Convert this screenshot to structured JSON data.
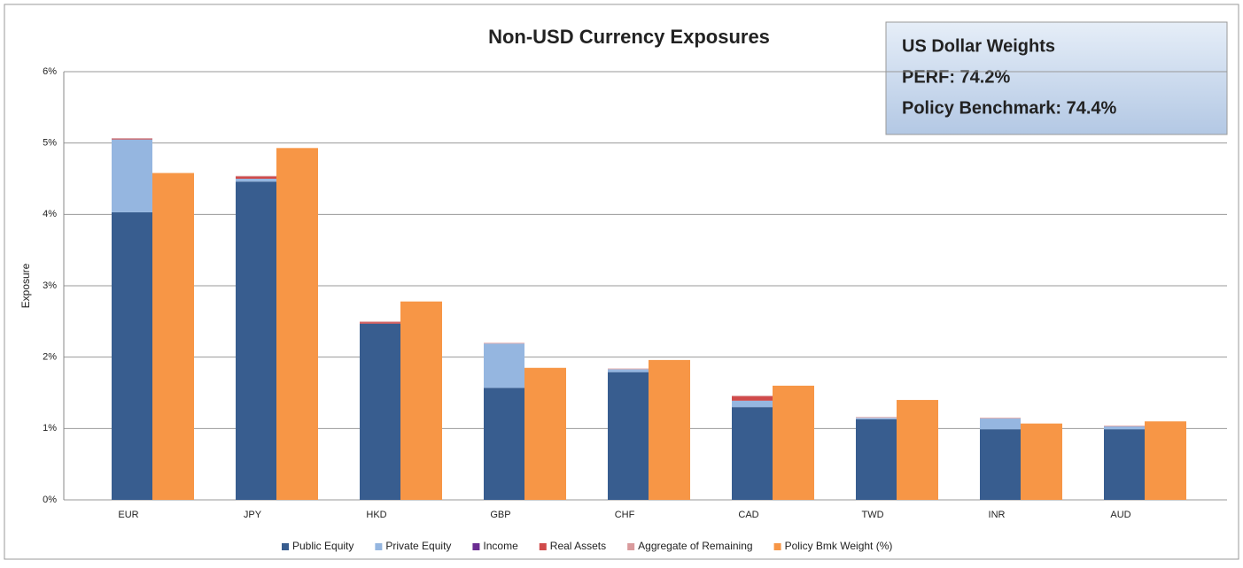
{
  "chart_data": {
    "type": "bar",
    "title": "Non-USD Currency Exposures",
    "y_label": "Exposure",
    "annotation": {
      "title": "US Dollar Weights",
      "lines": [
        "PERF: 74.2%",
        "Policy Benchmark: 74.4%"
      ]
    },
    "categories": [
      "EUR",
      "JPY",
      "HKD",
      "GBP",
      "CHF",
      "CAD",
      "TWD",
      "INR",
      "AUD"
    ],
    "series": [
      {
        "name": "Public Equity",
        "color": "#385d8f",
        "values": [
          4.03,
          4.46,
          2.47,
          1.57,
          1.79,
          1.3,
          1.13,
          0.99,
          0.99
        ]
      },
      {
        "name": "Private Equity",
        "color": "#95b6e0",
        "values": [
          1.02,
          0.04,
          0,
          0.62,
          0.04,
          0.09,
          0.02,
          0.15,
          0.04
        ]
      },
      {
        "name": "Income",
        "color": "#6a2c91",
        "values": [
          0,
          0,
          0,
          0,
          0,
          0,
          0,
          0,
          0
        ]
      },
      {
        "name": "Real Assets",
        "color": "#d04a4a",
        "values": [
          0.01,
          0.03,
          0.02,
          0,
          0,
          0.06,
          0,
          0,
          0
        ]
      },
      {
        "name": "Aggregate of Remaining",
        "color": "#d99a9c",
        "values": [
          0.01,
          0.01,
          0.01,
          0.01,
          0.01,
          0.01,
          0.01,
          0.01,
          0.01
        ]
      },
      {
        "name": "Policy Bmk Weight (%)",
        "color": "#f79646",
        "position": "beside",
        "values": [
          4.58,
          4.93,
          2.78,
          1.85,
          1.96,
          1.6,
          1.4,
          1.07,
          1.1
        ]
      }
    ],
    "ylim": [
      0,
      6
    ],
    "yticks": [
      {
        "value": 0,
        "label": "0%"
      },
      {
        "value": 1,
        "label": "1%"
      },
      {
        "value": 2,
        "label": "2%"
      },
      {
        "value": 3,
        "label": "3%"
      },
      {
        "value": 4,
        "label": "4%"
      },
      {
        "value": 5,
        "label": "5%"
      },
      {
        "value": 6,
        "label": "6%"
      }
    ],
    "grid": true,
    "legend": "bottom"
  }
}
